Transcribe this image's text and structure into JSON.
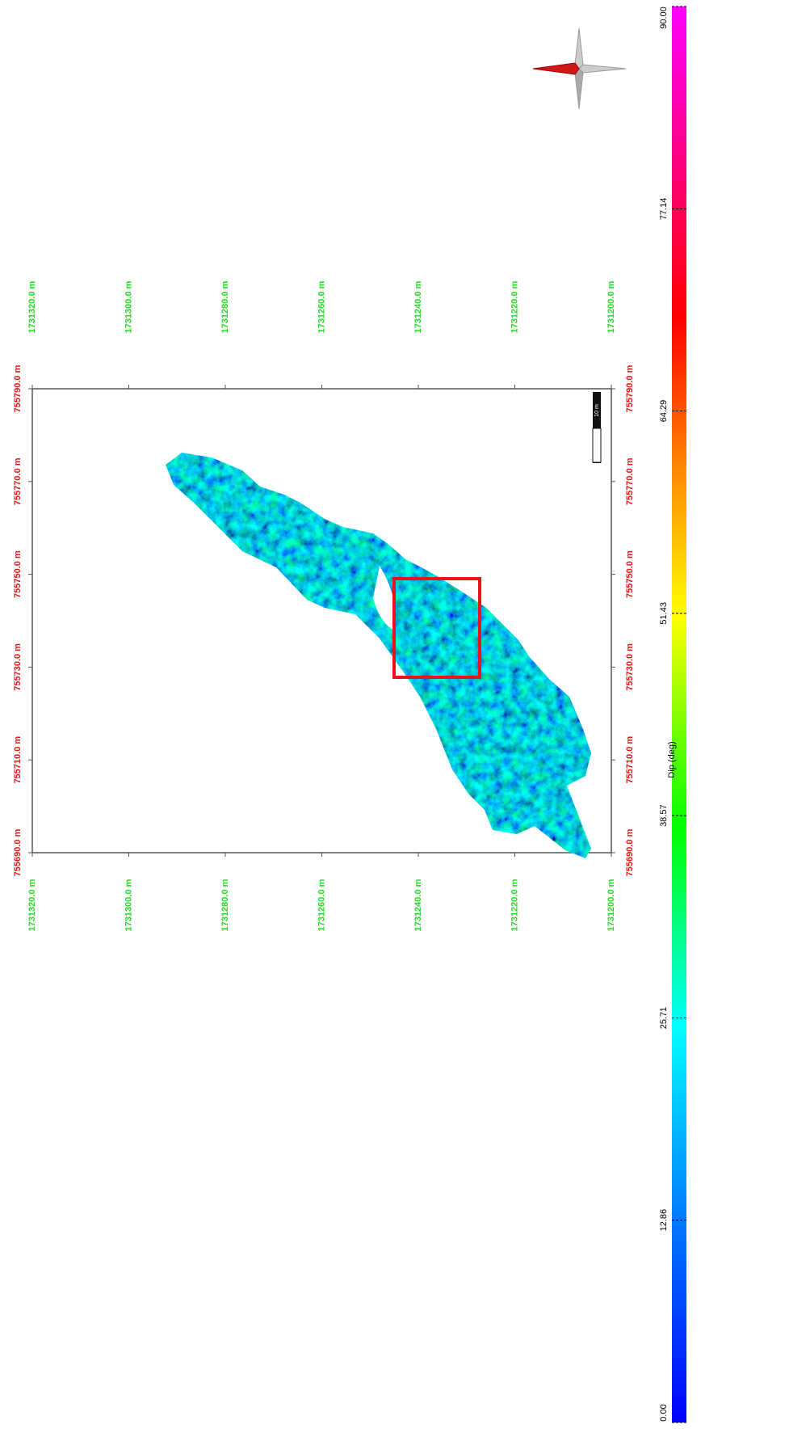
{
  "map": {
    "easting": {
      "lim": [
        755690,
        755790
      ],
      "ticks": [
        {
          "value": 755690,
          "label": "755690.0 m"
        },
        {
          "value": 755710,
          "label": "755710.0 m"
        },
        {
          "value": 755730,
          "label": "755730.0 m"
        },
        {
          "value": 755750,
          "label": "755750.0 m"
        },
        {
          "value": 755770,
          "label": "755770.0 m"
        },
        {
          "value": 755790,
          "label": "755790.0 m"
        }
      ]
    },
    "northing": {
      "lim": [
        1731320,
        1731200
      ],
      "ticks": [
        {
          "value": 1731320,
          "label": "1731320.0 m"
        },
        {
          "value": 1731300,
          "label": "1731300.0 m"
        },
        {
          "value": 1731280,
          "label": "1731280.0 m"
        },
        {
          "value": 1731260,
          "label": "1731260.0 m"
        },
        {
          "value": 1731240,
          "label": "1731240.0 m"
        },
        {
          "value": 1731220,
          "label": "1731220.0 m"
        },
        {
          "value": 1731200,
          "label": "1731200.0 m"
        }
      ]
    },
    "scale_bar": "10 m",
    "colorbar": {
      "title": "Dip (deg)",
      "lim": [
        0,
        90
      ],
      "ticks": [
        {
          "value": 0,
          "label": "0.00"
        },
        {
          "value": 12.86,
          "label": "12.86"
        },
        {
          "value": 25.71,
          "label": "25.71"
        },
        {
          "value": 38.57,
          "label": "38.57"
        },
        {
          "value": 51.43,
          "label": "51.43"
        },
        {
          "value": 64.29,
          "label": "64.29"
        },
        {
          "value": 77.14,
          "label": "77.14"
        },
        {
          "value": 90,
          "label": "90.00"
        }
      ]
    }
  }
}
